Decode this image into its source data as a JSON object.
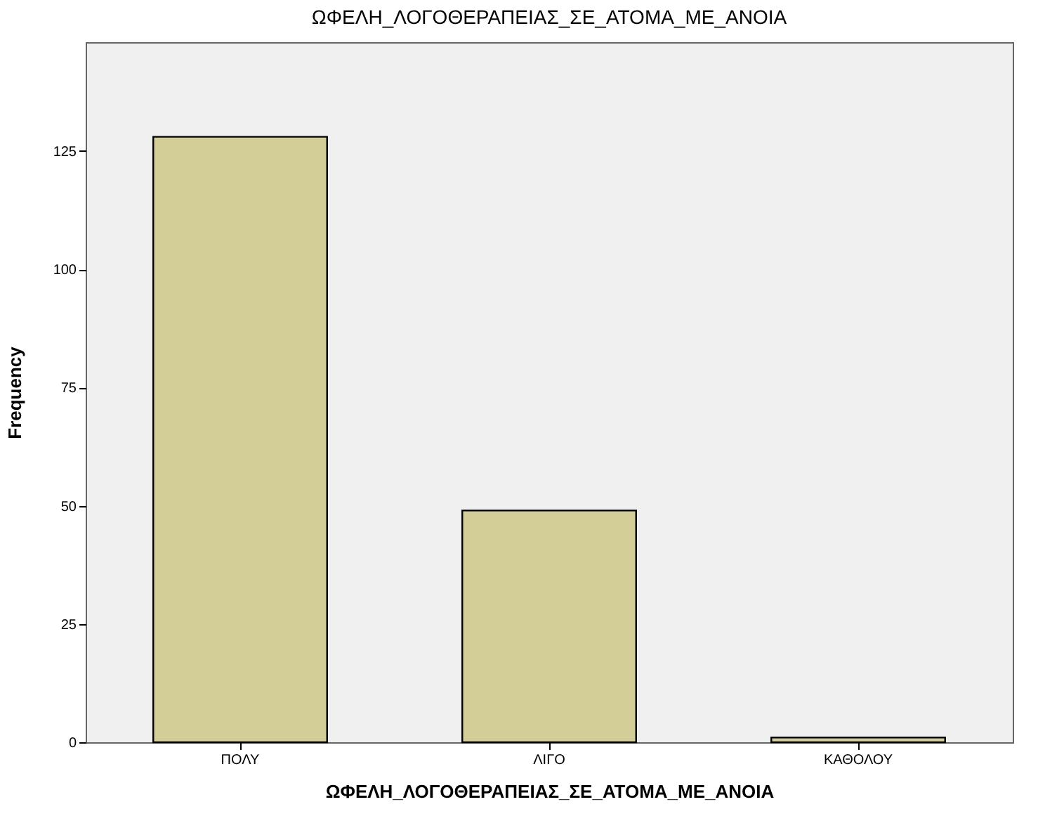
{
  "chart_data": {
    "type": "bar",
    "title": "ΩΦΕΛΗ_ΛΟΓΟΘΕΡΑΠΕΙΑΣ_ΣΕ_ΑΤΟΜΑ_ΜΕ_ΑΝΟΙΑ",
    "xlabel": "ΩΦΕΛΗ_ΛΟΓΟΘΕΡΑΠΕΙΑΣ_ΣΕ_ΑΤΟΜΑ_ΜΕ_ΑΝΟΙΑ",
    "ylabel": "Frequency",
    "categories": [
      "ΠΟΛΥ",
      "ΛΙΓΟ",
      "ΚΑΘΟΛΟΥ"
    ],
    "values": [
      128,
      49,
      1
    ],
    "color": "#d3ce97",
    "ylim": [
      0,
      148
    ],
    "yticks": [
      0,
      25,
      50,
      75,
      100,
      125
    ],
    "grid": false
  }
}
